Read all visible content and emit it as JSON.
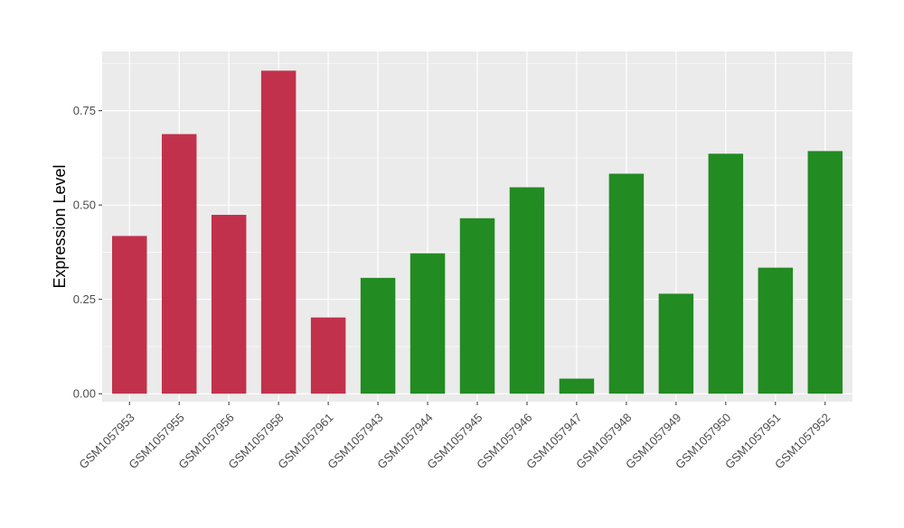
{
  "chart_data": {
    "type": "bar",
    "categories": [
      "GSM1057953",
      "GSM1057955",
      "GSM1057956",
      "GSM1057958",
      "GSM1057961",
      "GSM1057943",
      "GSM1057944",
      "GSM1057945",
      "GSM1057946",
      "GSM1057947",
      "GSM1057948",
      "GSM1057949",
      "GSM1057950",
      "GSM1057951",
      "GSM1057952"
    ],
    "values": [
      0.418,
      0.688,
      0.474,
      0.856,
      0.202,
      0.307,
      0.372,
      0.465,
      0.547,
      0.04,
      0.583,
      0.265,
      0.636,
      0.334,
      0.643
    ],
    "bar_colors": [
      "#c1314b",
      "#c1314b",
      "#c1314b",
      "#c1314b",
      "#c1314b",
      "#228b22",
      "#228b22",
      "#228b22",
      "#228b22",
      "#228b22",
      "#228b22",
      "#228b22",
      "#228b22",
      "#228b22",
      "#228b22"
    ],
    "ylabel": "Expression Level",
    "xlabel": "",
    "ylim": [
      -0.021,
      0.907
    ],
    "yticks": [
      0.0,
      0.25,
      0.5,
      0.75
    ],
    "ytick_labels": [
      "0.00",
      "0.25",
      "0.50",
      "0.75"
    ],
    "grid": true,
    "panel_background": "#ebebeb",
    "grid_color": "#ffffff"
  }
}
